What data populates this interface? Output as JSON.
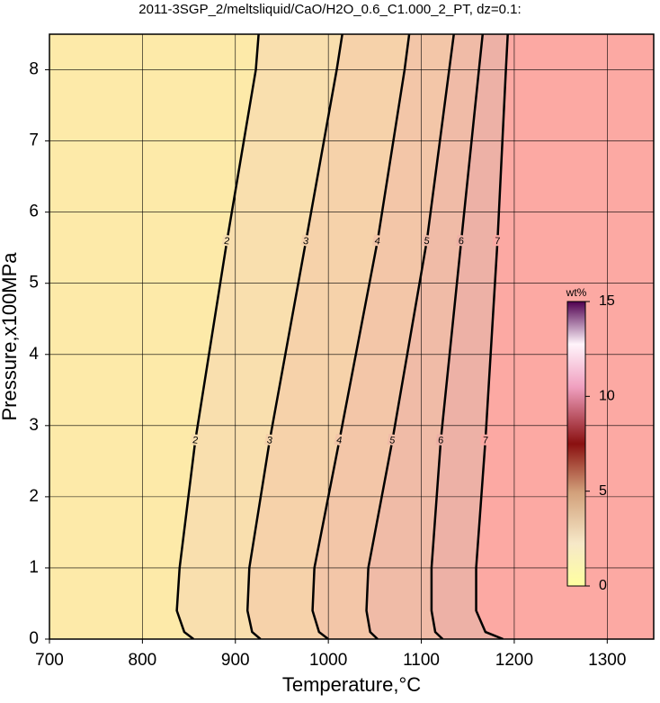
{
  "chart_data": {
    "type": "contour",
    "title": "2011-3SGP_2/meltsliquid/CaO/H2O_0.6_C1.000_2_PT, dz=0.1:",
    "x_label": "Temperature,°C",
    "y_label": "Pressure,x100MPa",
    "xlim": [
      700,
      1350
    ],
    "xticks": [
      700,
      800,
      900,
      1000,
      1100,
      1200,
      1300
    ],
    "ylim": [
      0,
      8.5
    ],
    "yticks": [
      0,
      1,
      2,
      3,
      4,
      5,
      6,
      7,
      8
    ],
    "grid": true,
    "background": "#fdeaa9",
    "contours": [
      {
        "level": 2,
        "fill": "#f9dfae",
        "x": [
          855,
          845,
          837,
          840,
          857,
          891,
          922,
          925
        ],
        "y": [
          0,
          0.1,
          0.4,
          1,
          2.8,
          5.6,
          8,
          8.5
        ]
      },
      {
        "level": 3,
        "fill": "#f6d2aa",
        "x": [
          927,
          918,
          913,
          915,
          937,
          976,
          1009,
          1015
        ],
        "y": [
          0,
          0.1,
          0.4,
          1,
          2.8,
          5.6,
          8,
          8.5
        ]
      },
      {
        "level": 4,
        "fill": "#f3c6a8",
        "x": [
          1000,
          990,
          983,
          985,
          1012,
          1053,
          1082,
          1087
        ],
        "y": [
          0,
          0.1,
          0.4,
          1,
          2.8,
          5.6,
          8,
          8.5
        ]
      },
      {
        "level": 5,
        "fill": "#f0bba7",
        "x": [
          1053,
          1045,
          1041,
          1043,
          1069,
          1106,
          1130,
          1135
        ],
        "y": [
          0,
          0.1,
          0.4,
          1,
          2.8,
          5.6,
          8,
          8.5
        ]
      },
      {
        "level": 6,
        "fill": "#edb1a6",
        "x": [
          1123,
          1115,
          1111,
          1111,
          1121,
          1143,
          1162,
          1166
        ],
        "y": [
          0,
          0.1,
          0.4,
          1,
          2.8,
          5.6,
          8,
          8.5
        ]
      },
      {
        "level": 7,
        "fill": "#fca9a3",
        "x": [
          1188,
          1169,
          1159,
          1159,
          1169,
          1182,
          1191,
          1193
        ],
        "y": [
          0,
          0.1,
          0.4,
          1,
          2.8,
          5.6,
          8,
          8.5
        ]
      }
    ],
    "colorbar": {
      "label": "wt%",
      "lim": [
        0,
        15
      ],
      "ticks": [
        0,
        5,
        10,
        15
      ]
    }
  }
}
